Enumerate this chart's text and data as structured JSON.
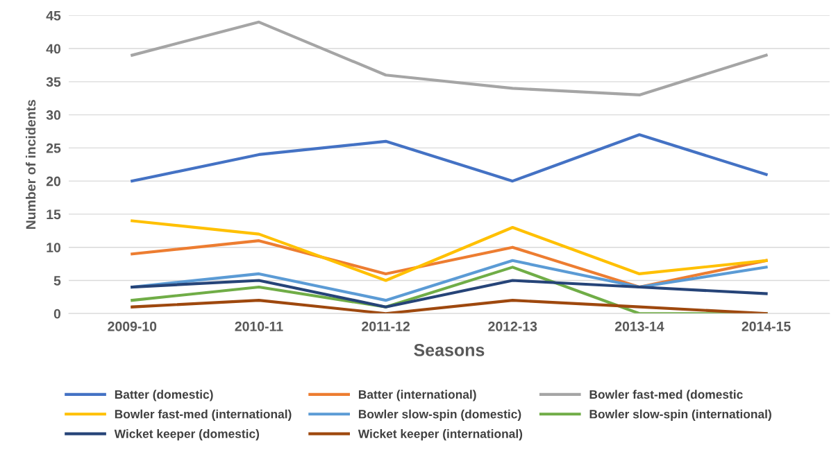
{
  "chart_data": {
    "type": "line",
    "xlabel": "Seasons",
    "ylabel": "Number of incidents",
    "categories": [
      "2009-10",
      "2010-11",
      "2011-12",
      "2012-13",
      "2013-14",
      "2014-15"
    ],
    "series": [
      {
        "name": "Batter (domestic)",
        "color": "#4472c4",
        "values": [
          20,
          24,
          26,
          20,
          27,
          21
        ]
      },
      {
        "name": "Batter (international)",
        "color": "#ed7d31",
        "values": [
          9,
          11,
          6,
          10,
          4,
          8
        ]
      },
      {
        "name": "Bowler fast-med (domestic",
        "color": "#a5a5a5",
        "values": [
          39,
          44,
          36,
          34,
          33,
          39
        ]
      },
      {
        "name": "Bowler fast-med (international)",
        "color": "#ffc000",
        "values": [
          14,
          12,
          5,
          13,
          6,
          8
        ]
      },
      {
        "name": "Bowler slow-spin (domestic)",
        "color": "#5b9bd5",
        "values": [
          4,
          6,
          2,
          8,
          4,
          7
        ]
      },
      {
        "name": "Bowler slow-spin (international)",
        "color": "#70ad47",
        "values": [
          2,
          4,
          1,
          7,
          0,
          0
        ]
      },
      {
        "name": "Wicket keeper (domestic)",
        "color": "#264478",
        "values": [
          4,
          5,
          1,
          5,
          4,
          3
        ]
      },
      {
        "name": "Wicket keeper (international)",
        "color": "#9e480e",
        "values": [
          1,
          2,
          0,
          2,
          1,
          0
        ]
      }
    ],
    "ylim": [
      0,
      45
    ],
    "yticks": [
      0,
      5,
      10,
      15,
      20,
      25,
      30,
      35,
      40,
      45
    ],
    "grid": "y",
    "legend": "bottom",
    "marker": "none",
    "line_style": "solid"
  }
}
